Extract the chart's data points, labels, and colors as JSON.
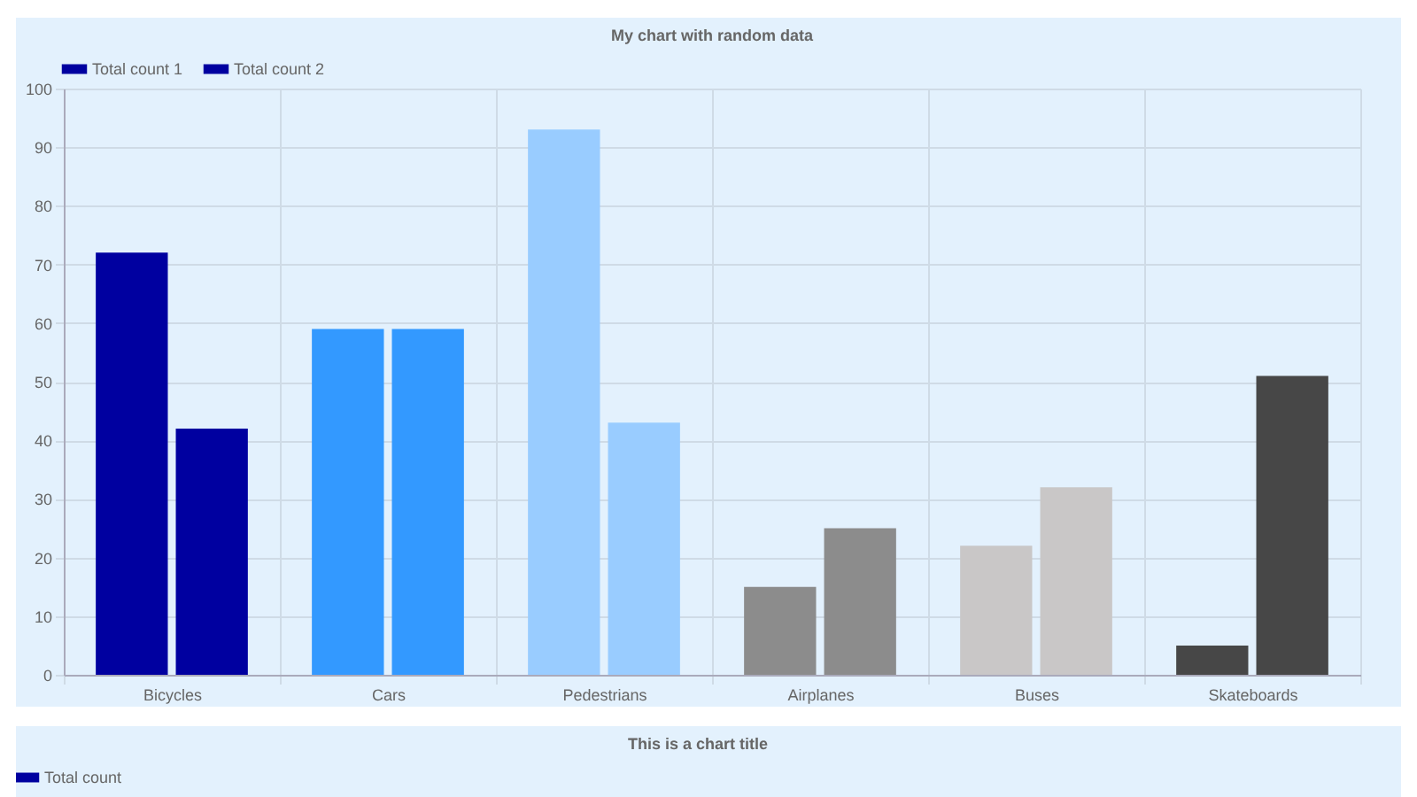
{
  "chart_data": [
    {
      "type": "bar",
      "title": "My chart with random data",
      "categories": [
        "Bicycles",
        "Cars",
        "Pedestrians",
        "Airplanes",
        "Buses",
        "Skateboards"
      ],
      "series": [
        {
          "name": "Total count 1",
          "color": "#0000a0",
          "colors": [
            "#0000a0",
            "#3399ff",
            "#99ccff",
            "#8c8c8c",
            "#c9c7c7",
            "#474747"
          ],
          "values": [
            72,
            59,
            93,
            15,
            22,
            5
          ]
        },
        {
          "name": "Total count 2",
          "color": "#0000a0",
          "colors": [
            "#0000a0",
            "#3399ff",
            "#99ccff",
            "#8c8c8c",
            "#c9c7c7",
            "#474747"
          ],
          "values": [
            42,
            59,
            43,
            25,
            32,
            51
          ]
        }
      ],
      "ylim": [
        0,
        100
      ],
      "yticks": [
        0,
        10,
        20,
        30,
        40,
        50,
        60,
        70,
        80,
        90,
        100
      ],
      "grid": true,
      "legend": "top"
    },
    {
      "type": "other",
      "title": "This is a chart title",
      "legend": "top",
      "series": [
        {
          "name": "Total count",
          "color": "#0000a0"
        }
      ]
    }
  ]
}
